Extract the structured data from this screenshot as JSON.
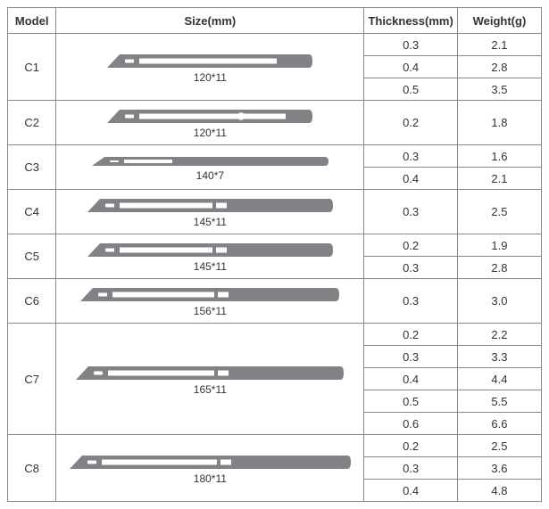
{
  "columns": {
    "model": "Model",
    "size": "Size(mm)",
    "thickness": "Thickness(mm)",
    "weight": "Weight(g)"
  },
  "bladeColor": "#808285",
  "rows": [
    {
      "model": "C1",
      "size_label": "120*11",
      "blade": {
        "len": 230,
        "h": 15,
        "slotStart": 36,
        "slotEnd": 190,
        "slotH": 6,
        "hole": 0,
        "tipNotch": 0
      },
      "measures": [
        {
          "thickness": "0.3",
          "weight": "2.1"
        },
        {
          "thickness": "0.4",
          "weight": "2.8"
        },
        {
          "thickness": "0.5",
          "weight": "3.5"
        }
      ]
    },
    {
      "model": "C2",
      "size_label": "120*11",
      "blade": {
        "len": 230,
        "h": 15,
        "slotStart": 36,
        "slotEnd": 200,
        "slotH": 6,
        "hole": 150,
        "tipNotch": 0
      },
      "measures": [
        {
          "thickness": "0.2",
          "weight": "1.8"
        }
      ]
    },
    {
      "model": "C3",
      "size_label": "140*7",
      "blade": {
        "len": 265,
        "h": 10,
        "slotStart": 36,
        "slotEnd": 90,
        "slotH": 4,
        "hole": 0,
        "tipNotch": 0
      },
      "measures": [
        {
          "thickness": "0.3",
          "weight": "1.6"
        },
        {
          "thickness": "0.4",
          "weight": "2.1"
        }
      ]
    },
    {
      "model": "C4",
      "size_label": "145*11",
      "blade": {
        "len": 275,
        "h": 15,
        "slotStart": 36,
        "slotEnd": 140,
        "slotH": 6,
        "hole": 0,
        "tipNotch": 1
      },
      "measures": [
        {
          "thickness": "0.3",
          "weight": "2.5"
        }
      ]
    },
    {
      "model": "C5",
      "size_label": "145*11",
      "blade": {
        "len": 275,
        "h": 15,
        "slotStart": 36,
        "slotEnd": 140,
        "slotH": 6,
        "hole": 0,
        "tipNotch": 1
      },
      "measures": [
        {
          "thickness": "0.2",
          "weight": "1.9"
        },
        {
          "thickness": "0.3",
          "weight": "2.8"
        }
      ]
    },
    {
      "model": "C6",
      "size_label": "156*11",
      "blade": {
        "len": 290,
        "h": 15,
        "slotStart": 36,
        "slotEnd": 150,
        "slotH": 6,
        "hole": 0,
        "tipNotch": 1
      },
      "measures": [
        {
          "thickness": "0.3",
          "weight": "3.0"
        }
      ]
    },
    {
      "model": "C7",
      "size_label": "165*11",
      "blade": {
        "len": 300,
        "h": 15,
        "slotStart": 36,
        "slotEnd": 155,
        "slotH": 6,
        "hole": 0,
        "tipNotch": 1
      },
      "measures": [
        {
          "thickness": "0.2",
          "weight": "2.2"
        },
        {
          "thickness": "0.3",
          "weight": "3.3"
        },
        {
          "thickness": "0.4",
          "weight": "4.4"
        },
        {
          "thickness": "0.5",
          "weight": "5.5"
        },
        {
          "thickness": "0.6",
          "weight": "6.6"
        }
      ]
    },
    {
      "model": "C8",
      "size_label": "180*11",
      "blade": {
        "len": 315,
        "h": 15,
        "slotStart": 36,
        "slotEnd": 165,
        "slotH": 6,
        "hole": 0,
        "tipNotch": 1
      },
      "measures": [
        {
          "thickness": "0.2",
          "weight": "2.5"
        },
        {
          "thickness": "0.3",
          "weight": "3.6"
        },
        {
          "thickness": "0.4",
          "weight": "4.8"
        }
      ]
    }
  ]
}
